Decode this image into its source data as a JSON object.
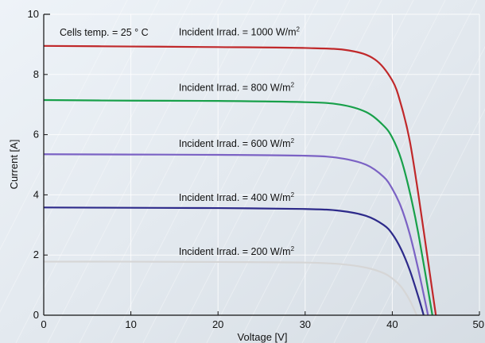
{
  "chart_data": {
    "type": "line",
    "title": "",
    "xlabel": "Voltage [V]",
    "ylabel": "Current [A]",
    "xlim": [
      0,
      50
    ],
    "ylim": [
      0,
      10
    ],
    "x_ticks": [
      "0",
      "10",
      "20",
      "30",
      "40",
      "50"
    ],
    "y_ticks": [
      "0",
      "2",
      "4",
      "6",
      "8",
      "10"
    ],
    "grid": true,
    "annotation": "Cells temp. = 25 ° C",
    "unit_superscript": "2",
    "series": [
      {
        "name": "Incident Irrad. = 1000 W/m",
        "color": "#c0282a",
        "x": [
          0,
          10,
          20,
          30,
          35,
          38,
          40,
          41,
          42,
          43,
          44,
          45
        ],
        "y": [
          8.95,
          8.93,
          8.91,
          8.88,
          8.8,
          8.5,
          7.8,
          7.0,
          5.8,
          4.0,
          2.0,
          0
        ]
      },
      {
        "name": "Incident Irrad. = 800 W/m",
        "color": "#18a04a",
        "x": [
          0,
          10,
          20,
          30,
          34,
          37,
          39,
          40,
          41,
          42,
          43,
          44.6
        ],
        "y": [
          7.15,
          7.13,
          7.12,
          7.08,
          7.0,
          6.75,
          6.3,
          5.9,
          5.2,
          4.1,
          2.7,
          0
        ]
      },
      {
        "name": "Incident Irrad. = 600 W/m",
        "color": "#7b62c4",
        "x": [
          0,
          10,
          20,
          30,
          34,
          37,
          39,
          40,
          41,
          42,
          43,
          44.1
        ],
        "y": [
          5.35,
          5.34,
          5.33,
          5.3,
          5.22,
          5.0,
          4.6,
          4.2,
          3.6,
          2.7,
          1.5,
          0
        ]
      },
      {
        "name": "Incident Irrad. = 400 W/m",
        "color": "#2d2a8a",
        "x": [
          0,
          10,
          20,
          30,
          34,
          37,
          39,
          40,
          41,
          42,
          43,
          43.6
        ],
        "y": [
          3.58,
          3.57,
          3.56,
          3.53,
          3.47,
          3.3,
          3.0,
          2.7,
          2.2,
          1.5,
          0.6,
          0
        ]
      },
      {
        "name": "Incident Irrad. = 200 W/m",
        "color": "#d6d6d6",
        "x": [
          0,
          10,
          20,
          30,
          34,
          37,
          39,
          40,
          41,
          42,
          42.8
        ],
        "y": [
          1.78,
          1.78,
          1.77,
          1.75,
          1.7,
          1.58,
          1.4,
          1.22,
          0.95,
          0.5,
          0
        ]
      }
    ],
    "label_positions_data": [
      {
        "x": 15.5,
        "y": 9.3
      },
      {
        "x": 15.5,
        "y": 7.45
      },
      {
        "x": 15.5,
        "y": 5.6
      },
      {
        "x": 15.5,
        "y": 3.8
      },
      {
        "x": 15.5,
        "y": 2.0
      }
    ]
  }
}
